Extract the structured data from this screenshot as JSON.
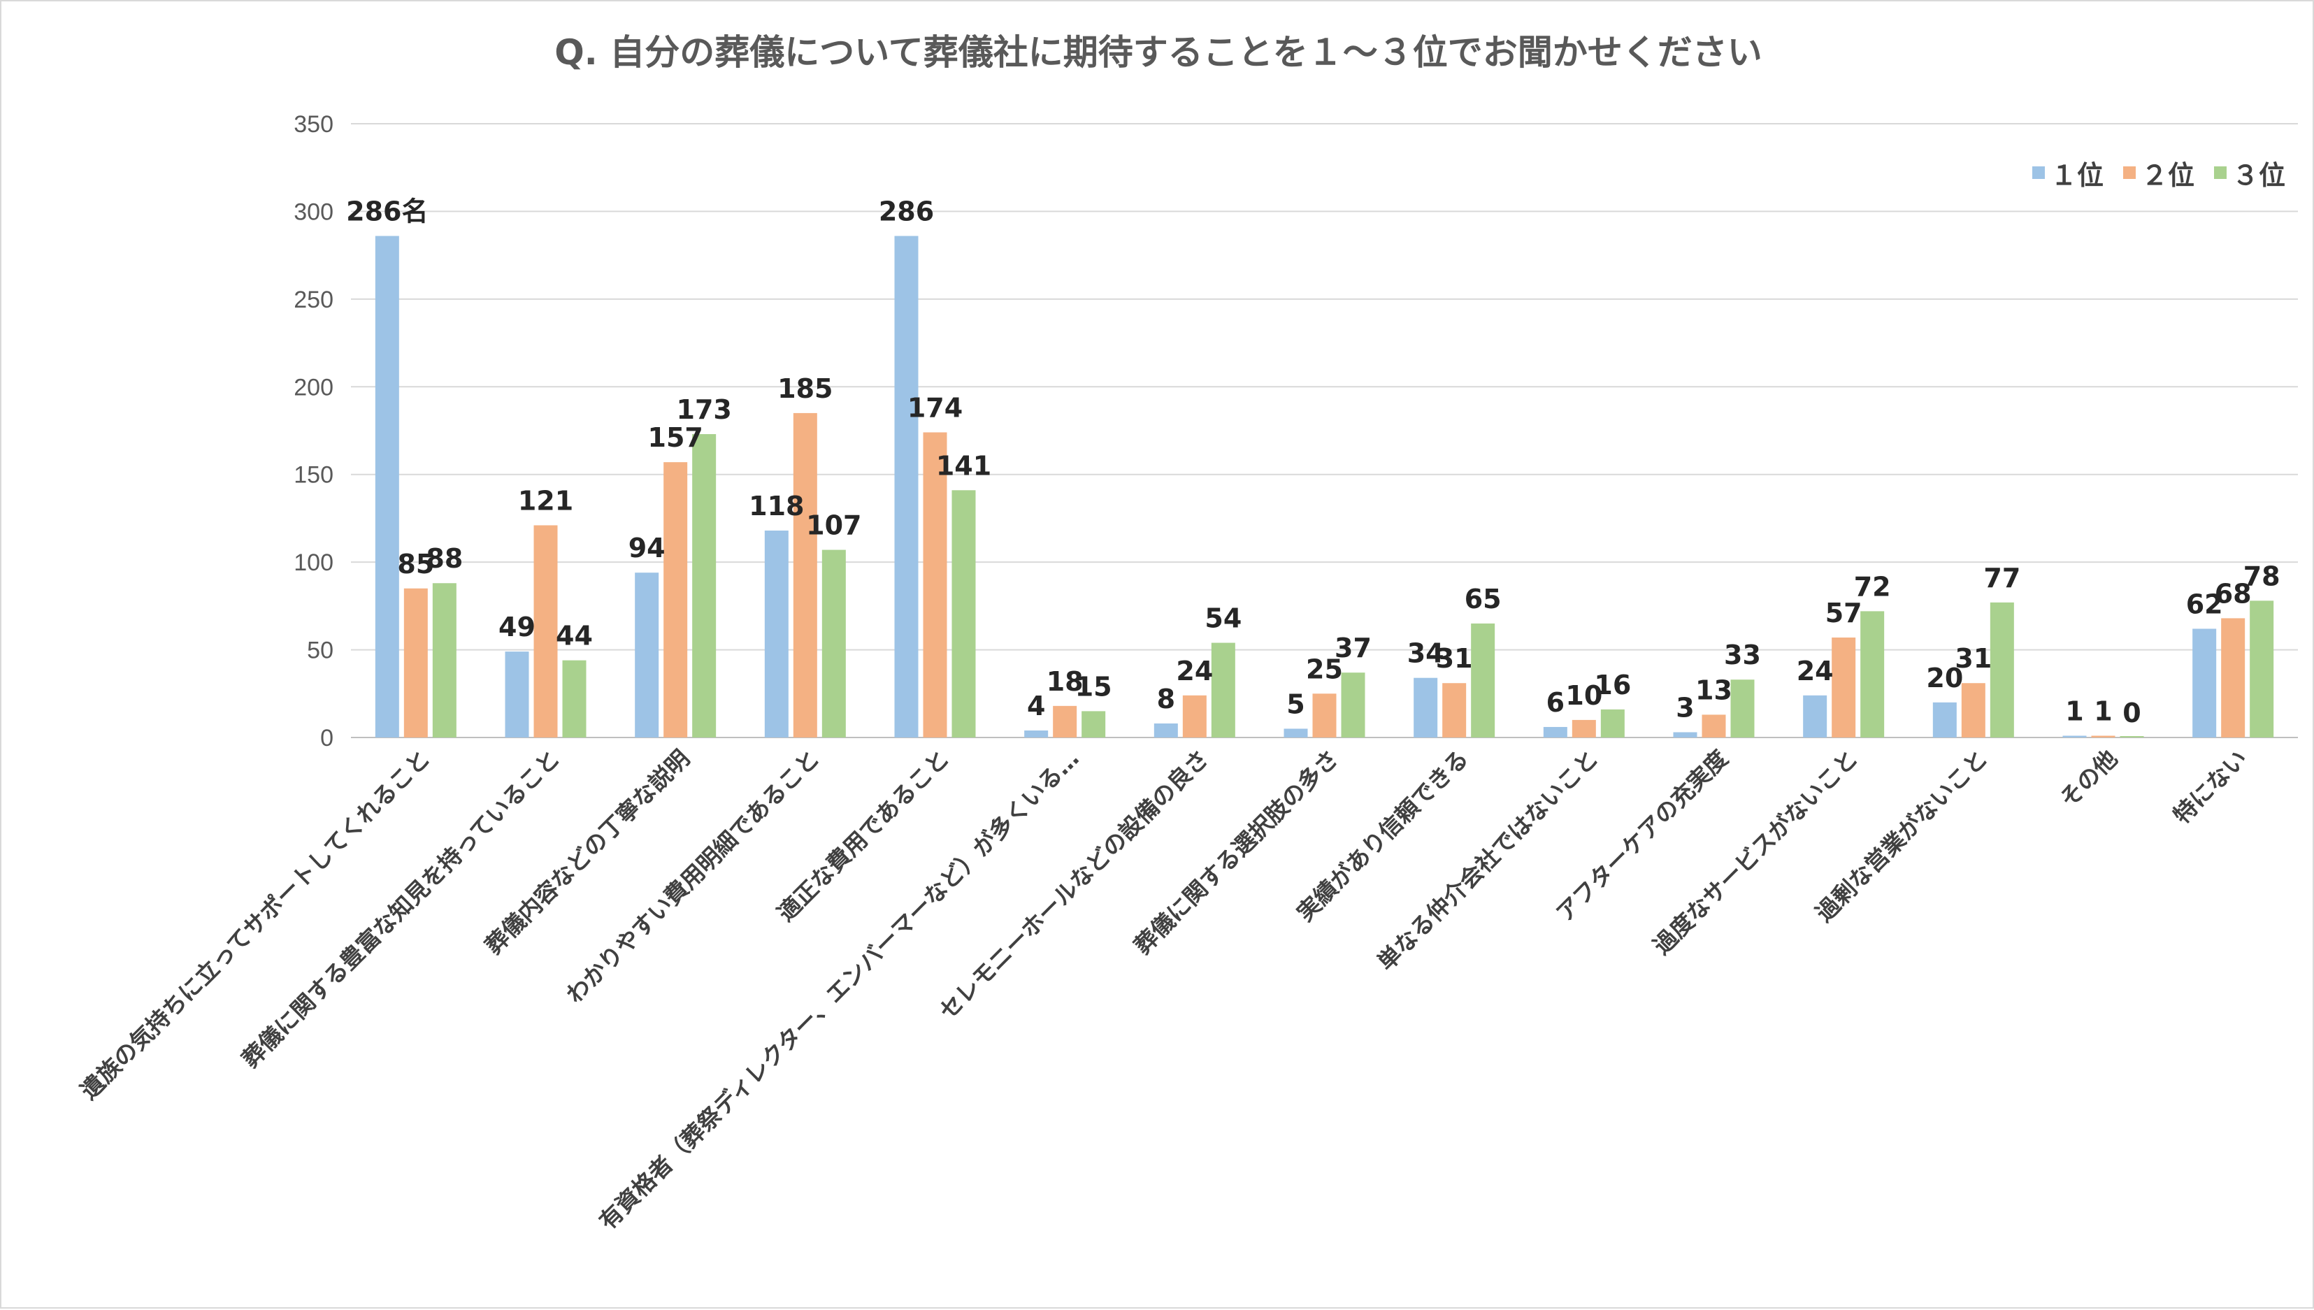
{
  "chart_data": {
    "type": "bar",
    "title": "Q. 自分の葬儀について葬儀社に期待することを１～３位でお聞かせください",
    "categories": [
      "遺族の気持ちに立ってサポートしてくれること",
      "葬儀に関する豊富な知見を持っていること",
      "葬儀内容などの丁寧な説明",
      "わかりやすい費用明細であること",
      "適正な費用であること",
      "有資格者（葬祭ディレクター、エンバーマーなど）が多くいる…",
      "セレモニーホールなどの設備の良さ",
      "葬儀に関する選択肢の多さ",
      "実績があり信頼できる",
      "単なる仲介会社ではないこと",
      "アフターケアの充実度",
      "過度なサービスがないこと",
      "過剰な営業がないこと",
      "その他",
      "特にない"
    ],
    "series": [
      {
        "name": "１位",
        "color": "#9dc3e6",
        "values": [
          286,
          49,
          94,
          118,
          286,
          4,
          8,
          5,
          34,
          6,
          3,
          24,
          20,
          1,
          62
        ]
      },
      {
        "name": "２位",
        "color": "#f4b183",
        "values": [
          85,
          121,
          157,
          185,
          174,
          18,
          24,
          25,
          31,
          10,
          13,
          57,
          31,
          1,
          68
        ]
      },
      {
        "name": "３位",
        "color": "#a9d18e",
        "values": [
          88,
          44,
          173,
          107,
          141,
          15,
          54,
          37,
          65,
          16,
          33,
          72,
          77,
          0,
          78
        ]
      }
    ],
    "unit_suffix": "名",
    "ylim": [
      0,
      350
    ],
    "yticks": [
      0,
      50,
      100,
      150,
      200,
      250,
      300,
      350
    ],
    "grid": true,
    "legend": "top-right"
  }
}
